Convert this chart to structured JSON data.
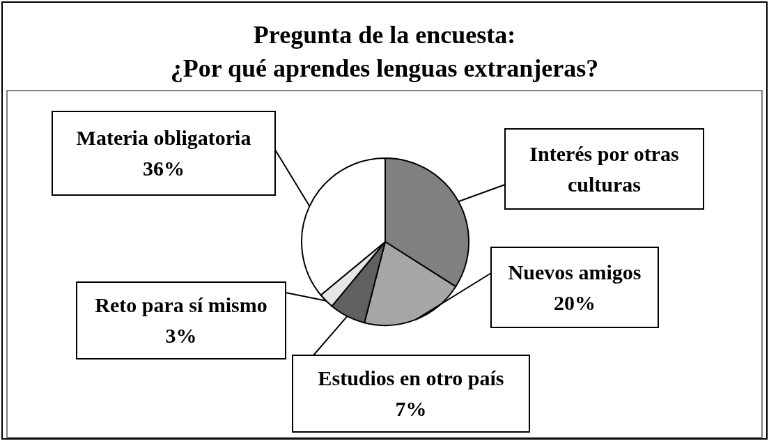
{
  "chart_data": {
    "type": "pie",
    "title": "Pregunta de la encuesta:\n¿Por qué aprendes lenguas extranjeras?",
    "categories": [
      "Interés por otras culturas",
      "Nuevos amigos",
      "Estudios en otro país",
      "Reto para sí mismo",
      "Materia obligatoria"
    ],
    "values": [
      34,
      20,
      7,
      3,
      36
    ],
    "colors": [
      "#808080",
      "#a6a6a6",
      "#606060",
      "#e6e6e6",
      "#ffffff"
    ],
    "value_labels": [
      null,
      "20%",
      "7%",
      "3%",
      "36%"
    ]
  }
}
